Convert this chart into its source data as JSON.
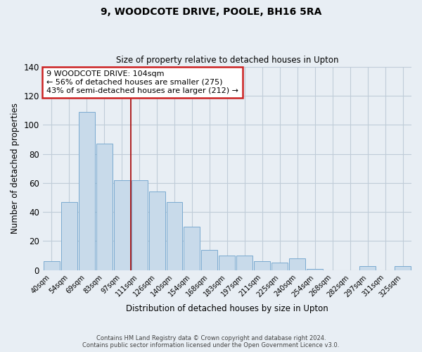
{
  "title": "9, WOODCOTE DRIVE, POOLE, BH16 5RA",
  "subtitle": "Size of property relative to detached houses in Upton",
  "xlabel": "Distribution of detached houses by size in Upton",
  "ylabel": "Number of detached properties",
  "bar_labels": [
    "40sqm",
    "54sqm",
    "69sqm",
    "83sqm",
    "97sqm",
    "111sqm",
    "126sqm",
    "140sqm",
    "154sqm",
    "168sqm",
    "183sqm",
    "197sqm",
    "211sqm",
    "225sqm",
    "240sqm",
    "254sqm",
    "268sqm",
    "282sqm",
    "297sqm",
    "311sqm",
    "325sqm"
  ],
  "bar_values": [
    6,
    47,
    109,
    87,
    62,
    62,
    54,
    47,
    30,
    14,
    10,
    10,
    6,
    5,
    8,
    1,
    0,
    0,
    3,
    0,
    3
  ],
  "bar_color": "#c8daea",
  "bar_edge_color": "#7aaad0",
  "vline_x": 4.5,
  "vline_color": "#aa1111",
  "ylim": [
    0,
    140
  ],
  "yticks": [
    0,
    20,
    40,
    60,
    80,
    100,
    120,
    140
  ],
  "annotation_title": "9 WOODCOTE DRIVE: 104sqm",
  "annotation_line1": "← 56% of detached houses are smaller (275)",
  "annotation_line2": "43% of semi-detached houses are larger (212) →",
  "annotation_box_color": "#ffffff",
  "annotation_border_color": "#cc2222",
  "footer_line1": "Contains HM Land Registry data © Crown copyright and database right 2024.",
  "footer_line2": "Contains public sector information licensed under the Open Government Licence v3.0.",
  "bg_color": "#e8eef4",
  "plot_bg_color": "#e8eef4",
  "grid_color": "#c0ccd8"
}
